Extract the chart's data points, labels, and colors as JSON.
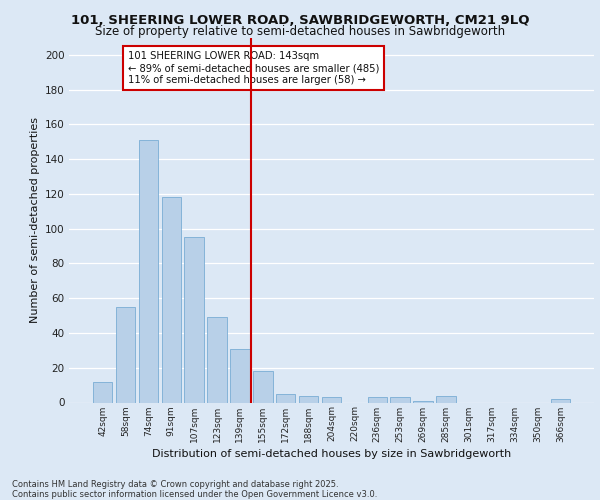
{
  "title1": "101, SHEERING LOWER ROAD, SAWBRIDGEWORTH, CM21 9LQ",
  "title2": "Size of property relative to semi-detached houses in Sawbridgeworth",
  "xlabel": "Distribution of semi-detached houses by size in Sawbridgeworth",
  "ylabel": "Number of semi-detached properties",
  "footer1": "Contains HM Land Registry data © Crown copyright and database right 2025.",
  "footer2": "Contains public sector information licensed under the Open Government Licence v3.0.",
  "bar_labels": [
    "42sqm",
    "58sqm",
    "74sqm",
    "91sqm",
    "107sqm",
    "123sqm",
    "139sqm",
    "155sqm",
    "172sqm",
    "188sqm",
    "204sqm",
    "220sqm",
    "236sqm",
    "253sqm",
    "269sqm",
    "285sqm",
    "301sqm",
    "317sqm",
    "334sqm",
    "350sqm",
    "366sqm"
  ],
  "bar_values": [
    12,
    55,
    151,
    118,
    95,
    49,
    31,
    18,
    5,
    4,
    3,
    0,
    3,
    3,
    1,
    4,
    0,
    0,
    0,
    0,
    2
  ],
  "bar_color": "#b8d0e8",
  "bar_edge_color": "#7aadd4",
  "vline_color": "#cc0000",
  "annotation_title": "101 SHEERING LOWER ROAD: 143sqm",
  "annotation_line1": "← 89% of semi-detached houses are smaller (485)",
  "annotation_line2": "11% of semi-detached houses are larger (58) →",
  "annotation_box_color": "#cc0000",
  "ylim": [
    0,
    210
  ],
  "yticks": [
    0,
    20,
    40,
    60,
    80,
    100,
    120,
    140,
    160,
    180,
    200
  ],
  "bg_color": "#dce8f5",
  "plot_bg_color": "#dce8f5",
  "grid_color": "#ffffff"
}
